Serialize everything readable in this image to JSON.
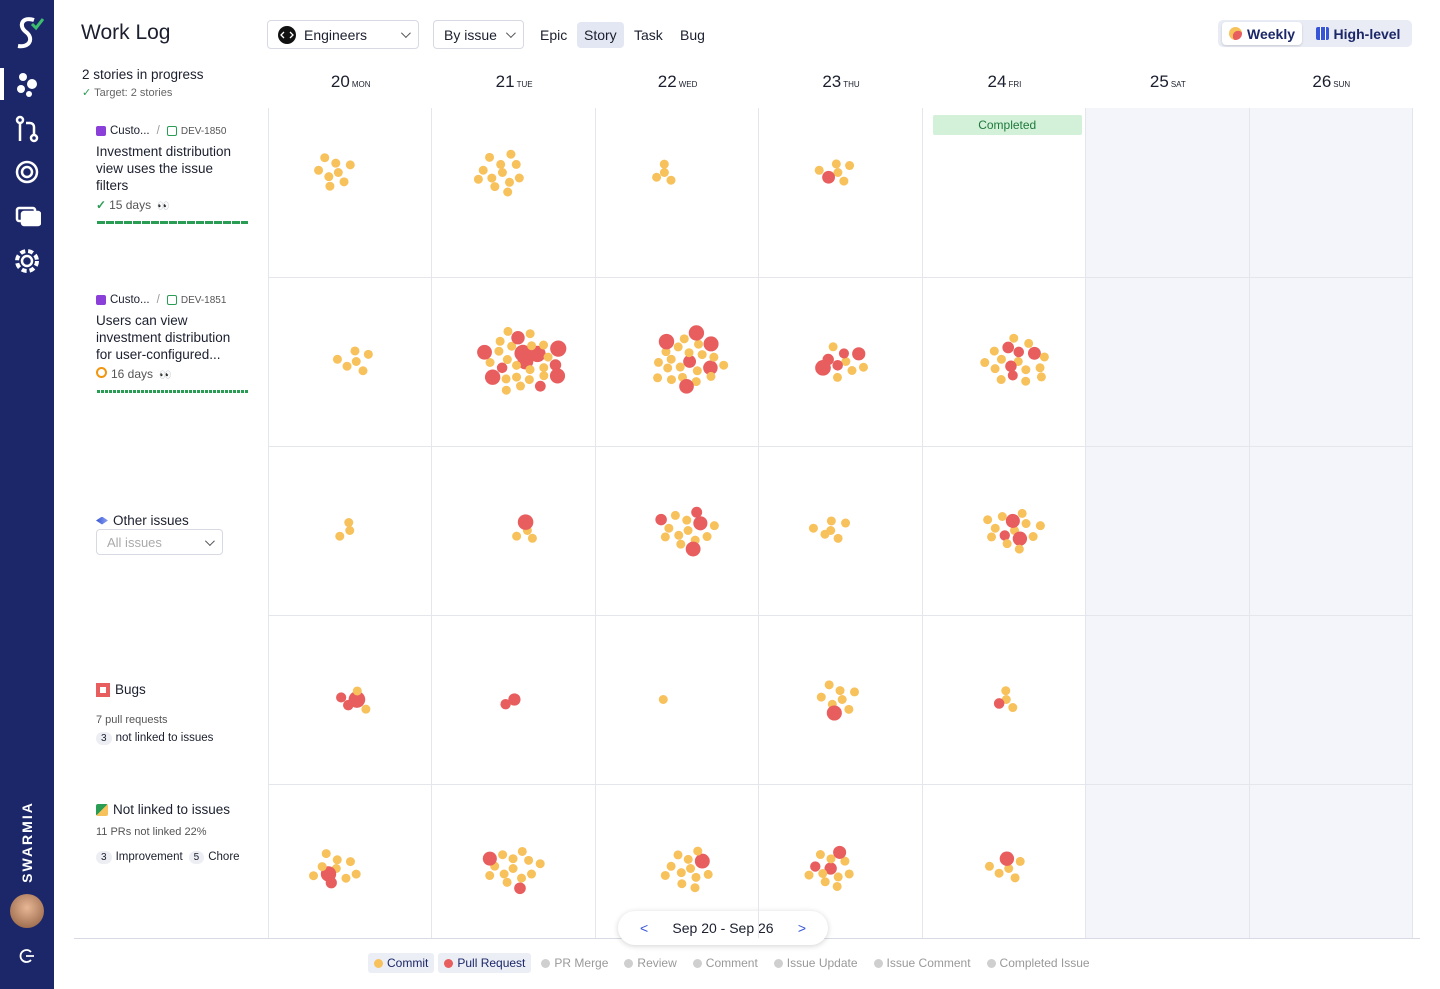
{
  "sidebar": {
    "brand": "SWARMIA"
  },
  "header": {
    "title": "Work Log",
    "team": "Engineers",
    "grouping": "By issue",
    "issue_types": [
      {
        "label": "Epic",
        "selected": false
      },
      {
        "label": "Story",
        "selected": true
      },
      {
        "label": "Task",
        "selected": false
      },
      {
        "label": "Bug",
        "selected": false
      }
    ],
    "views": [
      {
        "label": "Weekly",
        "selected": true
      },
      {
        "label": "High-level",
        "selected": false
      }
    ]
  },
  "summary": {
    "stories": "2 stories in progress",
    "target": "Target: 2 stories"
  },
  "days": [
    {
      "date": "20",
      "weekday": "MON",
      "weekend": false
    },
    {
      "date": "21",
      "weekday": "TUE",
      "weekend": false
    },
    {
      "date": "22",
      "weekday": "WED",
      "weekend": false
    },
    {
      "date": "23",
      "weekday": "THU",
      "weekend": false
    },
    {
      "date": "24",
      "weekday": "FRI",
      "weekend": false
    },
    {
      "date": "25",
      "weekday": "SAT",
      "weekend": true
    },
    {
      "date": "26",
      "weekday": "SUN",
      "weekend": true
    }
  ],
  "completed_label": "Completed",
  "rows": [
    {
      "epic": "Custo...",
      "separator": "/",
      "key": "DEV-1850",
      "title": "Investment distribution view uses the issue filters",
      "duration": "15 days",
      "done": true
    },
    {
      "epic": "Custo...",
      "separator": "/",
      "key": "DEV-1851",
      "title": "Users can view investment distribution for user-configured...",
      "duration": "16 days",
      "done": false
    },
    {
      "title": "Other issues",
      "filter": "All issues"
    },
    {
      "title": "Bugs",
      "detail": "7 pull requests",
      "badge": "3",
      "badge_label": "not linked to issues"
    },
    {
      "title": "Not linked to issues",
      "detail": "11 PRs not linked 22%",
      "tags": [
        {
          "count": "3",
          "label": "Improvement"
        },
        {
          "count": "5",
          "label": "Chore"
        }
      ]
    }
  ],
  "date_range": "Sep 20 - Sep 26",
  "legend": [
    {
      "label": "Commit",
      "color": "#f7c15c",
      "active": true
    },
    {
      "label": "Pull Request",
      "color": "#e85d5d",
      "active": true
    },
    {
      "label": "PR Merge",
      "color": "#cfcfcf",
      "active": false
    },
    {
      "label": "Review",
      "color": "#cfcfcf",
      "active": false
    },
    {
      "label": "Comment",
      "color": "#cfcfcf",
      "active": false
    },
    {
      "label": "Issue Update",
      "color": "#cfcfcf",
      "active": false
    },
    {
      "label": "Issue Comment",
      "color": "#cfcfcf",
      "active": false
    },
    {
      "label": "Completed Issue",
      "color": "#cfcfcf",
      "active": false
    }
  ]
}
